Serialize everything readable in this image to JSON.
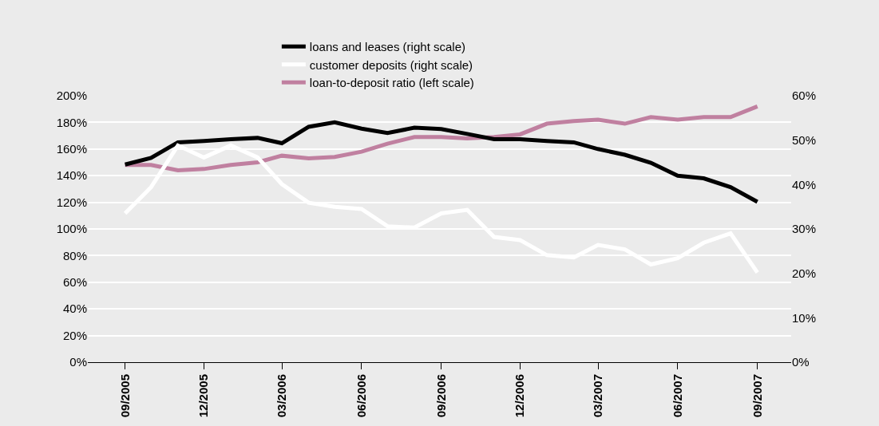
{
  "chart_data": {
    "type": "line",
    "x": [
      "2005-09",
      "2005-10",
      "2005-11",
      "2005-12",
      "2006-01",
      "2006-02",
      "2006-03",
      "2006-04",
      "2006-05",
      "2006-06",
      "2006-07",
      "2006-08",
      "2006-09",
      "2006-10",
      "2006-11",
      "2006-12",
      "2007-01",
      "2007-02",
      "2007-03",
      "2007-04",
      "2007-05",
      "2007-06",
      "2007-07",
      "2007-08",
      "2007-09"
    ],
    "series": [
      {
        "name": "loans and leases (right scale)",
        "color": "#000000",
        "axis": "y2",
        "values": [
          44.5,
          46,
          49.5,
          49.8,
          50.2,
          50.5,
          49.3,
          53,
          54,
          52.6,
          51.6,
          52.8,
          52.5,
          51.4,
          50.2,
          50.2,
          49.8,
          49.5,
          48,
          46.7,
          44.9,
          42,
          41.4,
          39.4,
          36.1
        ]
      },
      {
        "name": "customer deposits (right scale)",
        "color": "#ffffff",
        "axis": "y2",
        "values": [
          33.5,
          39.4,
          48.8,
          46.1,
          48.8,
          46.1,
          40.1,
          35.9,
          35,
          34.5,
          30.6,
          30.3,
          33.5,
          34.3,
          28.2,
          27.5,
          24.1,
          23.6,
          26.4,
          25.4,
          22,
          23.4,
          26.9,
          29,
          20.2
        ]
      },
      {
        "name": "loan-to-deposit ratio (left scale)",
        "color": "#c080a0",
        "values": [
          148,
          148,
          144,
          145,
          148,
          150,
          155,
          153,
          154,
          158,
          164,
          169,
          169,
          168,
          169,
          171,
          179,
          181,
          182,
          179,
          184,
          182,
          184,
          184,
          192
        ]
      }
    ],
    "xlim": [
      "2005-07-20",
      "2007-10-10"
    ],
    "xticks": [
      {
        "value": "2005-09",
        "label": "09/2005"
      },
      {
        "value": "2005-12",
        "label": "12/2005"
      },
      {
        "value": "2006-03",
        "label": "03/2006"
      },
      {
        "value": "2006-06",
        "label": "06/2006"
      },
      {
        "value": "2006-09",
        "label": "09/2006"
      },
      {
        "value": "2006-12",
        "label": "12/2006"
      },
      {
        "value": "2007-03",
        "label": "03/2007"
      },
      {
        "value": "2007-06",
        "label": "06/2007"
      },
      {
        "value": "2007-09",
        "label": "09/2007"
      }
    ],
    "ylim": [
      0,
      200
    ],
    "yticks": [
      {
        "value": 0,
        "label": "0%"
      },
      {
        "value": 20,
        "label": "20%"
      },
      {
        "value": 40,
        "label": "40%"
      },
      {
        "value": 60,
        "label": "60%"
      },
      {
        "value": 80,
        "label": "80%"
      },
      {
        "value": 100,
        "label": "100%"
      },
      {
        "value": 120,
        "label": "120%"
      },
      {
        "value": 140,
        "label": "140%"
      },
      {
        "value": 160,
        "label": "160%"
      },
      {
        "value": 180,
        "label": "180%"
      },
      {
        "value": 200,
        "label": "200%"
      }
    ],
    "y2lim": [
      0,
      60
    ],
    "y2ticks": [
      {
        "value": 0,
        "label": "0%"
      },
      {
        "value": 10,
        "label": "10%"
      },
      {
        "value": 20,
        "label": "20%"
      },
      {
        "value": 30,
        "label": "30%"
      },
      {
        "value": 40,
        "label": "40%"
      },
      {
        "value": 50,
        "label": "50%"
      },
      {
        "value": 60,
        "label": "60%"
      }
    ],
    "grid": "y",
    "legend": "top",
    "marker": "none",
    "line_style": "solid"
  }
}
